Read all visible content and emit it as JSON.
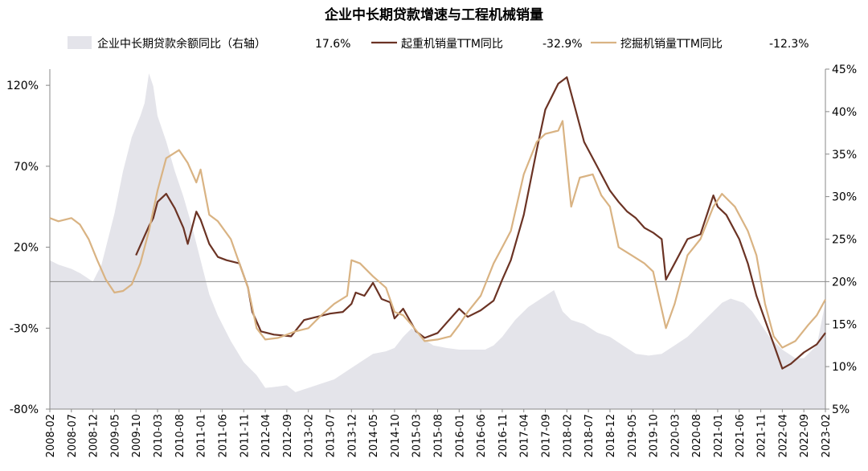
{
  "chart_data": {
    "type": "line",
    "title": "企业中长期贷款增速与工程机械销量",
    "legend": [
      {
        "key": "loan",
        "label": "企业中长期贷款余额同比（右轴）",
        "value": "17.6%",
        "color": "#e4e4ea",
        "kind": "area"
      },
      {
        "key": "crane",
        "label": "起重机销量TTM同比",
        "value": "-32.9%",
        "color": "#6b3324",
        "kind": "line"
      },
      {
        "key": "excavator",
        "label": "挖掘机销量TTM同比",
        "value": "-12.3%",
        "color": "#d9b383",
        "kind": "line"
      }
    ],
    "legend_position": "top",
    "grid": false,
    "y_left": {
      "min": -80,
      "max": 130,
      "ticks": [
        -80,
        -30,
        20,
        70,
        120
      ],
      "tick_labels": [
        "-80%",
        "-30%",
        "20%",
        "70%",
        "120%"
      ]
    },
    "y_right": {
      "min": 5,
      "max": 45,
      "ticks": [
        5,
        10,
        15,
        20,
        25,
        30,
        35,
        40,
        45
      ],
      "tick_labels": [
        "5%",
        "10%",
        "15%",
        "20%",
        "25%",
        "30%",
        "35%",
        "40%",
        "45%"
      ]
    },
    "x_ticks": [
      "2008-02",
      "2008-07",
      "2008-12",
      "2009-05",
      "2009-10",
      "2010-03",
      "2010-08",
      "2011-01",
      "2011-06",
      "2011-11",
      "2012-04",
      "2012-09",
      "2013-02",
      "2013-07",
      "2013-12",
      "2014-05",
      "2014-10",
      "2015-03",
      "2015-08",
      "2016-01",
      "2016-06",
      "2016-11",
      "2017-04",
      "2017-09",
      "2018-02",
      "2018-07",
      "2018-12",
      "2019-05",
      "2019-10",
      "2020-03",
      "2020-08",
      "2021-01",
      "2021-06",
      "2021-11",
      "2022-04",
      "2022-09",
      "2023-02"
    ],
    "reference_line": {
      "axis": "right",
      "value": 20
    },
    "series": [
      {
        "key": "loan",
        "axis": "right",
        "points": [
          [
            "2008-02",
            22.5
          ],
          [
            "2008-04",
            22.0
          ],
          [
            "2008-07",
            21.5
          ],
          [
            "2008-09",
            21.0
          ],
          [
            "2008-12",
            20.0
          ],
          [
            "2009-02",
            22.0
          ],
          [
            "2009-03",
            24.0
          ],
          [
            "2009-05",
            28.0
          ],
          [
            "2009-07",
            33.0
          ],
          [
            "2009-09",
            37.0
          ],
          [
            "2009-11",
            39.5
          ],
          [
            "2009-12",
            41.0
          ],
          [
            "2010-01",
            44.5
          ],
          [
            "2010-02",
            43.0
          ],
          [
            "2010-03",
            39.5
          ],
          [
            "2010-05",
            36.5
          ],
          [
            "2010-07",
            33.0
          ],
          [
            "2010-09",
            30.0
          ],
          [
            "2010-11",
            26.5
          ],
          [
            "2011-01",
            22.5
          ],
          [
            "2011-03",
            18.5
          ],
          [
            "2011-05",
            16.0
          ],
          [
            "2011-08",
            13.0
          ],
          [
            "2011-11",
            10.5
          ],
          [
            "2012-02",
            9.0
          ],
          [
            "2012-04",
            7.5
          ],
          [
            "2012-06",
            7.6
          ],
          [
            "2012-09",
            7.8
          ],
          [
            "2012-11",
            7.0
          ],
          [
            "2013-02",
            7.5
          ],
          [
            "2013-05",
            8.0
          ],
          [
            "2013-08",
            8.5
          ],
          [
            "2013-11",
            9.5
          ],
          [
            "2014-02",
            10.5
          ],
          [
            "2014-05",
            11.5
          ],
          [
            "2014-08",
            11.8
          ],
          [
            "2014-10",
            12.2
          ],
          [
            "2014-12",
            13.5
          ],
          [
            "2015-02",
            14.5
          ],
          [
            "2015-04",
            13.5
          ],
          [
            "2015-07",
            12.5
          ],
          [
            "2015-10",
            12.2
          ],
          [
            "2016-01",
            12.0
          ],
          [
            "2016-04",
            12.0
          ],
          [
            "2016-07",
            12.0
          ],
          [
            "2016-09",
            12.5
          ],
          [
            "2016-11",
            13.5
          ],
          [
            "2017-02",
            15.5
          ],
          [
            "2017-05",
            17.0
          ],
          [
            "2017-08",
            18.0
          ],
          [
            "2017-11",
            19.0
          ],
          [
            "2018-01",
            16.5
          ],
          [
            "2018-03",
            15.5
          ],
          [
            "2018-06",
            15.0
          ],
          [
            "2018-09",
            14.0
          ],
          [
            "2018-12",
            13.5
          ],
          [
            "2019-03",
            12.5
          ],
          [
            "2019-06",
            11.5
          ],
          [
            "2019-09",
            11.3
          ],
          [
            "2019-12",
            11.5
          ],
          [
            "2020-03",
            12.5
          ],
          [
            "2020-06",
            13.5
          ],
          [
            "2020-09",
            15.0
          ],
          [
            "2020-12",
            16.5
          ],
          [
            "2021-02",
            17.5
          ],
          [
            "2021-04",
            18.0
          ],
          [
            "2021-07",
            17.5
          ],
          [
            "2021-09",
            16.5
          ],
          [
            "2021-11",
            15.0
          ],
          [
            "2022-01",
            13.5
          ],
          [
            "2022-04",
            12.0
          ],
          [
            "2022-07",
            11.0
          ],
          [
            "2022-09",
            11.0
          ],
          [
            "2022-12",
            12.5
          ],
          [
            "2023-02",
            17.6
          ]
        ]
      },
      {
        "key": "crane",
        "axis": "left",
        "points": [
          [
            "2009-10",
            15
          ],
          [
            "2009-12",
            27
          ],
          [
            "2010-01",
            33
          ],
          [
            "2010-02",
            38
          ],
          [
            "2010-03",
            48
          ],
          [
            "2010-05",
            53
          ],
          [
            "2010-07",
            44
          ],
          [
            "2010-09",
            32
          ],
          [
            "2010-10",
            22
          ],
          [
            "2010-12",
            42
          ],
          [
            "2011-01",
            37
          ],
          [
            "2011-03",
            22
          ],
          [
            "2011-05",
            14
          ],
          [
            "2011-07",
            12
          ],
          [
            "2011-10",
            10
          ],
          [
            "2011-12",
            -5
          ],
          [
            "2012-01",
            -20
          ],
          [
            "2012-03",
            -32
          ],
          [
            "2012-06",
            -34
          ],
          [
            "2012-10",
            -35
          ],
          [
            "2013-01",
            -25
          ],
          [
            "2013-04",
            -23
          ],
          [
            "2013-07",
            -21
          ],
          [
            "2013-10",
            -20
          ],
          [
            "2013-12",
            -15
          ],
          [
            "2014-01",
            -8
          ],
          [
            "2014-03",
            -10
          ],
          [
            "2014-05",
            -2
          ],
          [
            "2014-07",
            -12
          ],
          [
            "2014-09",
            -14
          ],
          [
            "2014-10",
            -24
          ],
          [
            "2014-12",
            -18
          ],
          [
            "2015-03",
            -32
          ],
          [
            "2015-05",
            -36
          ],
          [
            "2015-08",
            -33
          ],
          [
            "2015-10",
            -27
          ],
          [
            "2016-01",
            -18
          ],
          [
            "2016-03",
            -23
          ],
          [
            "2016-06",
            -19
          ],
          [
            "2016-09",
            -13
          ],
          [
            "2016-11",
            0
          ],
          [
            "2017-01",
            12
          ],
          [
            "2017-04",
            40
          ],
          [
            "2017-07",
            80
          ],
          [
            "2017-09",
            105
          ],
          [
            "2017-12",
            121
          ],
          [
            "2018-02",
            125
          ],
          [
            "2018-04",
            105
          ],
          [
            "2018-06",
            85
          ],
          [
            "2018-09",
            70
          ],
          [
            "2018-12",
            55
          ],
          [
            "2019-02",
            48
          ],
          [
            "2019-04",
            42
          ],
          [
            "2019-06",
            38
          ],
          [
            "2019-08",
            32
          ],
          [
            "2019-10",
            29
          ],
          [
            "2019-12",
            25
          ],
          [
            "2020-01",
            0
          ],
          [
            "2020-03",
            10
          ],
          [
            "2020-06",
            25
          ],
          [
            "2020-09",
            28
          ],
          [
            "2020-12",
            52
          ],
          [
            "2021-01",
            45
          ],
          [
            "2021-03",
            40
          ],
          [
            "2021-06",
            25
          ],
          [
            "2021-08",
            10
          ],
          [
            "2021-10",
            -10
          ],
          [
            "2021-12",
            -25
          ],
          [
            "2022-02",
            -40
          ],
          [
            "2022-04",
            -55
          ],
          [
            "2022-06",
            -52
          ],
          [
            "2022-09",
            -45
          ],
          [
            "2022-12",
            -40
          ],
          [
            "2023-02",
            -32.9
          ]
        ]
      },
      {
        "key": "excavator",
        "axis": "left",
        "points": [
          [
            "2008-02",
            38
          ],
          [
            "2008-04",
            36
          ],
          [
            "2008-07",
            38
          ],
          [
            "2008-09",
            34
          ],
          [
            "2008-11",
            25
          ],
          [
            "2009-01",
            12
          ],
          [
            "2009-03",
            0
          ],
          [
            "2009-05",
            -8
          ],
          [
            "2009-07",
            -7
          ],
          [
            "2009-09",
            -3
          ],
          [
            "2009-11",
            10
          ],
          [
            "2010-01",
            30
          ],
          [
            "2010-03",
            55
          ],
          [
            "2010-05",
            75
          ],
          [
            "2010-08",
            80
          ],
          [
            "2010-10",
            72
          ],
          [
            "2010-12",
            60
          ],
          [
            "2011-01",
            68
          ],
          [
            "2011-03",
            40
          ],
          [
            "2011-05",
            36
          ],
          [
            "2011-08",
            25
          ],
          [
            "2011-10",
            10
          ],
          [
            "2011-12",
            -5
          ],
          [
            "2012-02",
            -30
          ],
          [
            "2012-04",
            -37
          ],
          [
            "2012-07",
            -36
          ],
          [
            "2012-11",
            -32
          ],
          [
            "2013-02",
            -30
          ],
          [
            "2013-05",
            -22
          ],
          [
            "2013-08",
            -15
          ],
          [
            "2013-11",
            -10
          ],
          [
            "2013-12",
            12
          ],
          [
            "2014-02",
            10
          ],
          [
            "2014-05",
            2
          ],
          [
            "2014-08",
            -5
          ],
          [
            "2014-10",
            -20
          ],
          [
            "2014-12",
            -22
          ],
          [
            "2015-02",
            -28
          ],
          [
            "2015-05",
            -38
          ],
          [
            "2015-08",
            -37
          ],
          [
            "2015-11",
            -35
          ],
          [
            "2016-01",
            -28
          ],
          [
            "2016-03",
            -20
          ],
          [
            "2016-06",
            -10
          ],
          [
            "2016-09",
            10
          ],
          [
            "2016-11",
            20
          ],
          [
            "2017-01",
            30
          ],
          [
            "2017-04",
            65
          ],
          [
            "2017-07",
            85
          ],
          [
            "2017-09",
            90
          ],
          [
            "2017-12",
            92
          ],
          [
            "2018-01",
            98
          ],
          [
            "2018-03",
            45
          ],
          [
            "2018-05",
            63
          ],
          [
            "2018-08",
            65
          ],
          [
            "2018-10",
            52
          ],
          [
            "2018-12",
            45
          ],
          [
            "2019-02",
            20
          ],
          [
            "2019-05",
            15
          ],
          [
            "2019-08",
            10
          ],
          [
            "2019-10",
            5
          ],
          [
            "2020-01",
            -30
          ],
          [
            "2020-03",
            -15
          ],
          [
            "2020-06",
            15
          ],
          [
            "2020-09",
            25
          ],
          [
            "2020-12",
            45
          ],
          [
            "2021-02",
            53
          ],
          [
            "2021-05",
            45
          ],
          [
            "2021-08",
            30
          ],
          [
            "2021-10",
            15
          ],
          [
            "2021-12",
            -15
          ],
          [
            "2022-02",
            -35
          ],
          [
            "2022-04",
            -42
          ],
          [
            "2022-07",
            -38
          ],
          [
            "2022-10",
            -28
          ],
          [
            "2022-12",
            -22
          ],
          [
            "2023-02",
            -12.3
          ]
        ]
      }
    ]
  }
}
